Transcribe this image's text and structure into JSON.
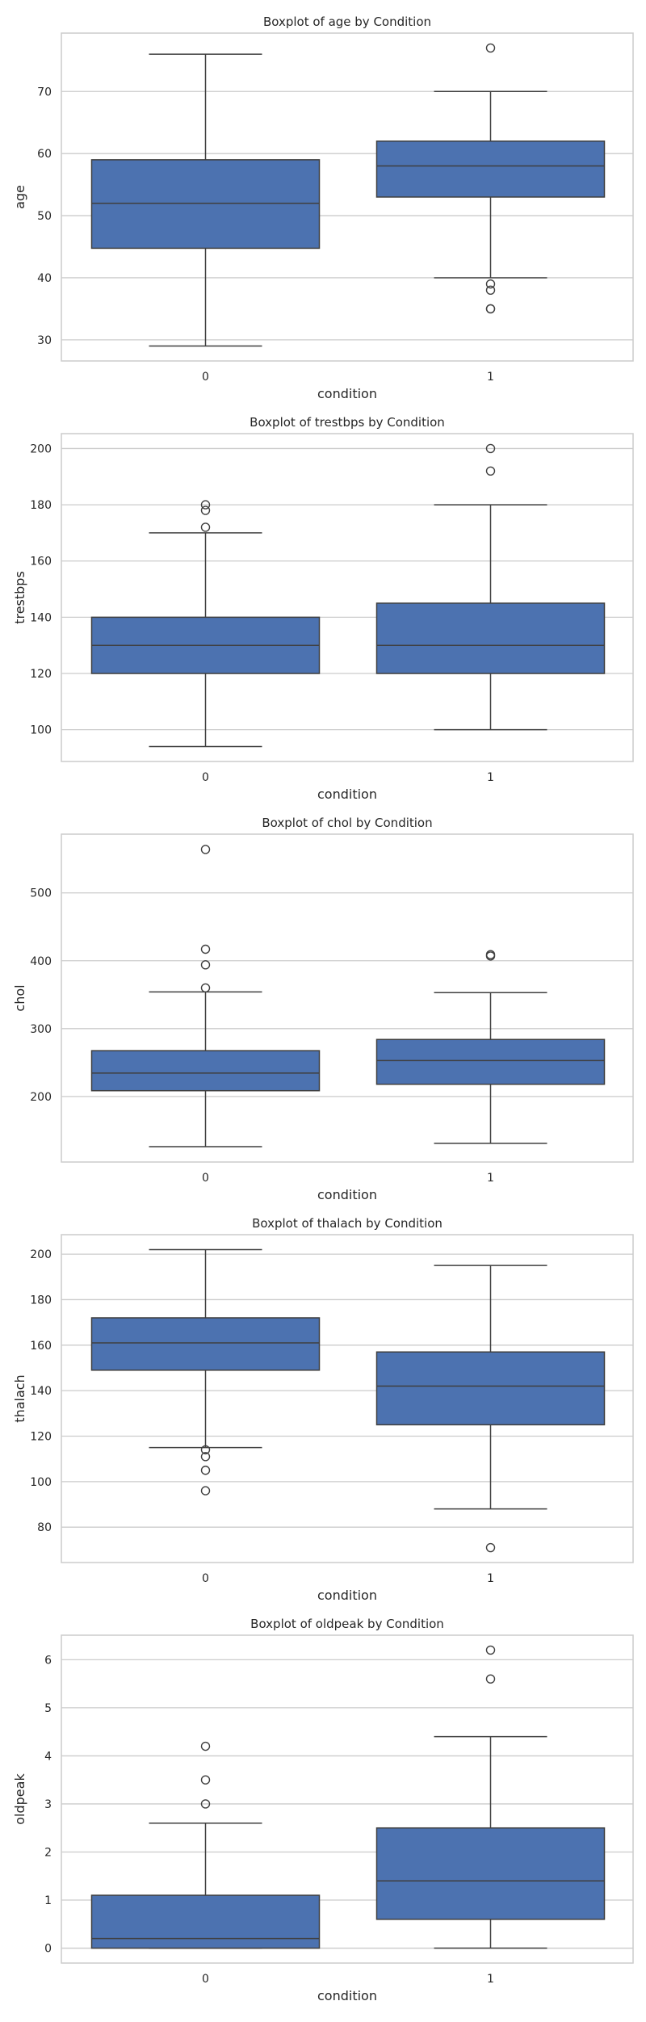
{
  "chart_data": [
    {
      "type": "boxplot",
      "title": "Boxplot of age by Condition",
      "xlabel": "condition",
      "ylabel": "age",
      "categories": [
        "0",
        "1"
      ],
      "ylim": [
        26.6,
        79.4
      ],
      "yticks": [
        30,
        40,
        50,
        60,
        70
      ],
      "boxes": [
        {
          "category": "0",
          "whisker_low": 29,
          "q1": 44.75,
          "median": 52,
          "q3": 59,
          "whisker_high": 76,
          "outliers": []
        },
        {
          "category": "1",
          "whisker_low": 40,
          "q1": 53,
          "median": 58,
          "q3": 62,
          "whisker_high": 70,
          "outliers": [
            77,
            39,
            38,
            35,
            35
          ]
        }
      ],
      "grid": true,
      "color": "#4c72b0"
    },
    {
      "type": "boxplot",
      "title": "Boxplot of trestbps by Condition",
      "xlabel": "condition",
      "ylabel": "trestbps",
      "categories": [
        "0",
        "1"
      ],
      "ylim": [
        88.7,
        205.3
      ],
      "yticks": [
        100,
        120,
        140,
        160,
        180,
        200
      ],
      "boxes": [
        {
          "category": "0",
          "whisker_low": 94,
          "q1": 120,
          "median": 130,
          "q3": 140,
          "whisker_high": 170,
          "outliers": [
            180,
            178,
            172
          ]
        },
        {
          "category": "1",
          "whisker_low": 100,
          "q1": 120,
          "median": 130,
          "q3": 145,
          "whisker_high": 180,
          "outliers": [
            200,
            192
          ]
        }
      ],
      "grid": true,
      "color": "#4c72b0"
    },
    {
      "type": "boxplot",
      "title": "Boxplot of chol by Condition",
      "xlabel": "condition",
      "ylabel": "chol",
      "categories": [
        "0",
        "1"
      ],
      "ylim": [
        103.45,
        586.55
      ],
      "yticks": [
        200,
        300,
        400,
        500
      ],
      "boxes": [
        {
          "category": "0",
          "whisker_low": 126,
          "q1": 208.5,
          "median": 234.5,
          "q3": 267.5,
          "whisker_high": 354,
          "outliers": [
            564,
            417,
            394,
            360
          ]
        },
        {
          "category": "1",
          "whisker_low": 131,
          "q1": 218,
          "median": 253,
          "q3": 284,
          "whisker_high": 353,
          "outliers": [
            409,
            407
          ]
        }
      ],
      "grid": true,
      "color": "#4c72b0"
    },
    {
      "type": "boxplot",
      "title": "Boxplot of thalach by Condition",
      "xlabel": "condition",
      "ylabel": "thalach",
      "categories": [
        "0",
        "1"
      ],
      "ylim": [
        64.45,
        208.55
      ],
      "yticks": [
        80,
        100,
        120,
        140,
        160,
        180,
        200
      ],
      "boxes": [
        {
          "category": "0",
          "whisker_low": 115,
          "q1": 149,
          "median": 161,
          "q3": 172,
          "whisker_high": 202,
          "outliers": [
            114,
            111,
            105,
            96
          ]
        },
        {
          "category": "1",
          "whisker_low": 88,
          "q1": 125,
          "median": 142,
          "q3": 157,
          "whisker_high": 195,
          "outliers": [
            71
          ]
        }
      ],
      "grid": true,
      "color": "#4c72b0"
    },
    {
      "type": "boxplot",
      "title": "Boxplot of oldpeak by Condition",
      "xlabel": "condition",
      "ylabel": "oldpeak",
      "categories": [
        "0",
        "1"
      ],
      "ylim": [
        -0.31,
        6.51
      ],
      "yticks": [
        0,
        1,
        2,
        3,
        4,
        5,
        6
      ],
      "boxes": [
        {
          "category": "0",
          "whisker_low": 0,
          "q1": 0,
          "median": 0.2,
          "q3": 1.1,
          "whisker_high": 2.6,
          "outliers": [
            4.2,
            3.5,
            3.0
          ]
        },
        {
          "category": "1",
          "whisker_low": 0,
          "q1": 0.6,
          "median": 1.4,
          "q3": 2.5,
          "whisker_high": 4.4,
          "outliers": [
            6.2,
            5.6
          ]
        }
      ],
      "grid": true,
      "color": "#4c72b0"
    }
  ]
}
